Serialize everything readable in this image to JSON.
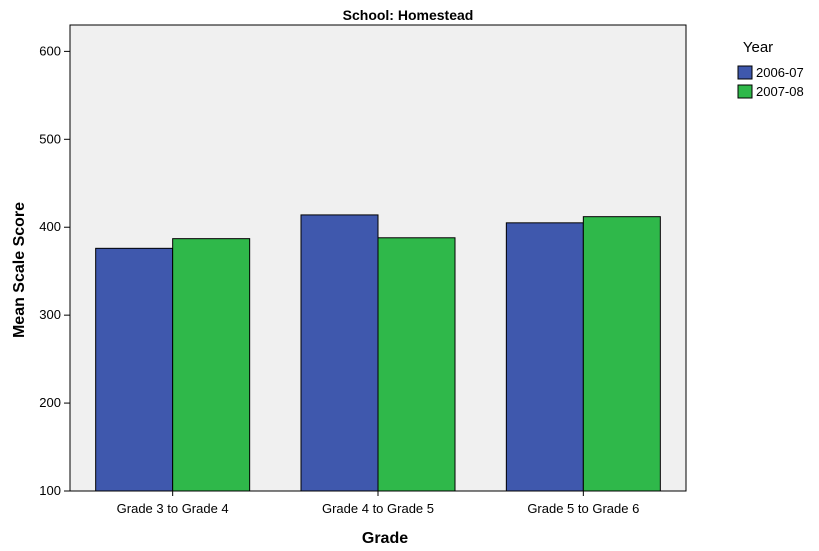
{
  "chart_data": {
    "type": "bar",
    "title": "School: Homestead",
    "xlabel": "Grade",
    "ylabel": "Mean Scale Score",
    "categories": [
      "Grade 3 to Grade 4",
      "Grade 4 to Grade 5",
      "Grade 5 to Grade 6"
    ],
    "series": [
      {
        "name": "2006-07",
        "values": [
          376,
          414,
          405
        ],
        "color": "#3f58ad"
      },
      {
        "name": "2007-08",
        "values": [
          387,
          388,
          412
        ],
        "color": "#2fb84a"
      }
    ],
    "ylim": [
      100,
      630
    ],
    "yticks": [
      100,
      200,
      300,
      400,
      500,
      600
    ],
    "grid": false,
    "legend": {
      "title": "Year",
      "placement": "top-right-outside"
    },
    "plot_background": "#f0f0f0"
  }
}
